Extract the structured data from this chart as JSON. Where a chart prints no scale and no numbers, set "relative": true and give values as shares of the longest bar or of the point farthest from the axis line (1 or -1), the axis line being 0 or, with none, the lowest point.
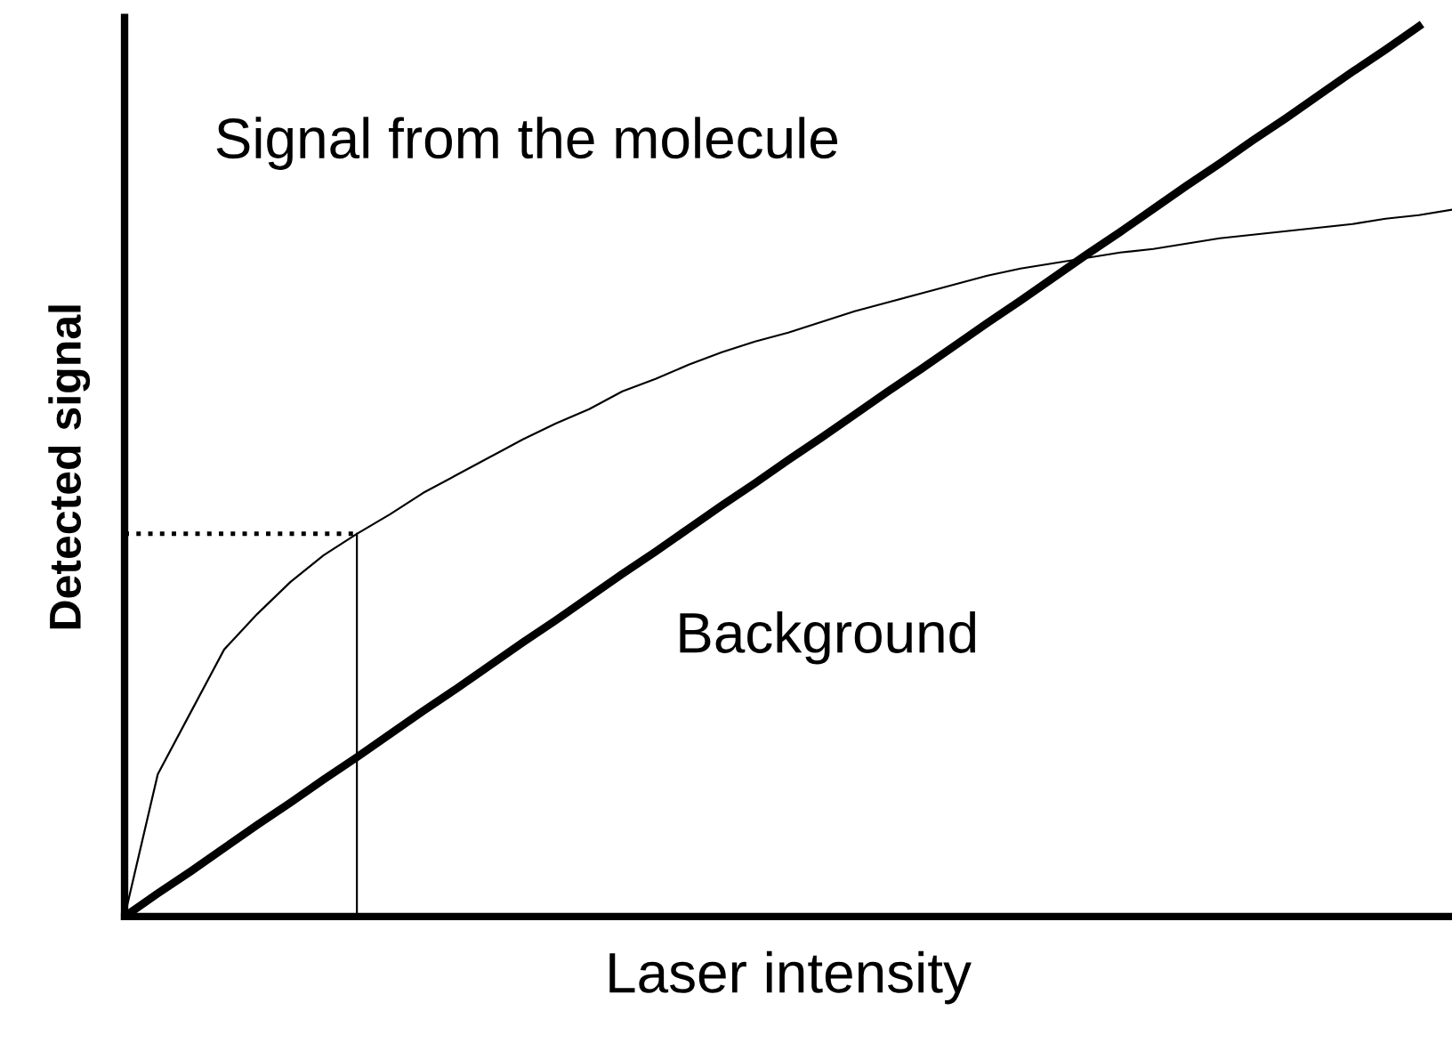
{
  "chart_data": {
    "type": "line",
    "xlabel": "Laser intensity",
    "ylabel": "Detected signal",
    "relative": true,
    "legend": false,
    "marker": "none",
    "categories": [
      null,
      null,
      null,
      null,
      null,
      null,
      null,
      null,
      null,
      null,
      null,
      null,
      null,
      null,
      null,
      null,
      null,
      null,
      null,
      null,
      null,
      null,
      null,
      null,
      null,
      null,
      null,
      null,
      null,
      null,
      null,
      null,
      null,
      null,
      null,
      null,
      null,
      null,
      null,
      null,
      null
    ],
    "series": [
      {
        "name": "Signal from the molecule",
        "color": "#000000",
        "line_style": "solid",
        "values": [
          0,
          0.16,
          0.23,
          0.3,
          0.34,
          0.376,
          0.406,
          0.43,
          0.452,
          0.476,
          0.496,
          0.516,
          0.536,
          0.554,
          0.57,
          0.59,
          0.604,
          0.62,
          0.634,
          0.646,
          0.656,
          0.668,
          0.68,
          0.69,
          0.7,
          0.71,
          0.72,
          0.728,
          0.734,
          0.74,
          0.746,
          0.75,
          0.756,
          0.762,
          0.766,
          0.77,
          0.774,
          0.778,
          0.784,
          0.788,
          0.794
        ]
      },
      {
        "name": "Background",
        "color": "#000000",
        "line_style": "solid",
        "values": [
          0,
          0.026,
          0.051,
          0.077,
          0.103,
          0.128,
          0.154,
          0.179,
          0.205,
          0.231,
          0.256,
          0.282,
          0.308,
          0.333,
          0.359,
          0.385,
          0.41,
          0.436,
          0.462,
          0.487,
          0.513,
          0.538,
          0.564,
          0.59,
          0.615,
          0.641,
          0.667,
          0.692,
          0.718,
          0.744,
          0.769,
          0.795,
          0.821,
          0.846,
          0.872,
          0.897,
          0.923,
          0.949,
          0.974,
          1,
          null
        ]
      }
    ],
    "ref_lines": [
      {
        "axis": "y",
        "value": 0.43,
        "line_style": "dotted",
        "color": "#000000"
      }
    ]
  }
}
